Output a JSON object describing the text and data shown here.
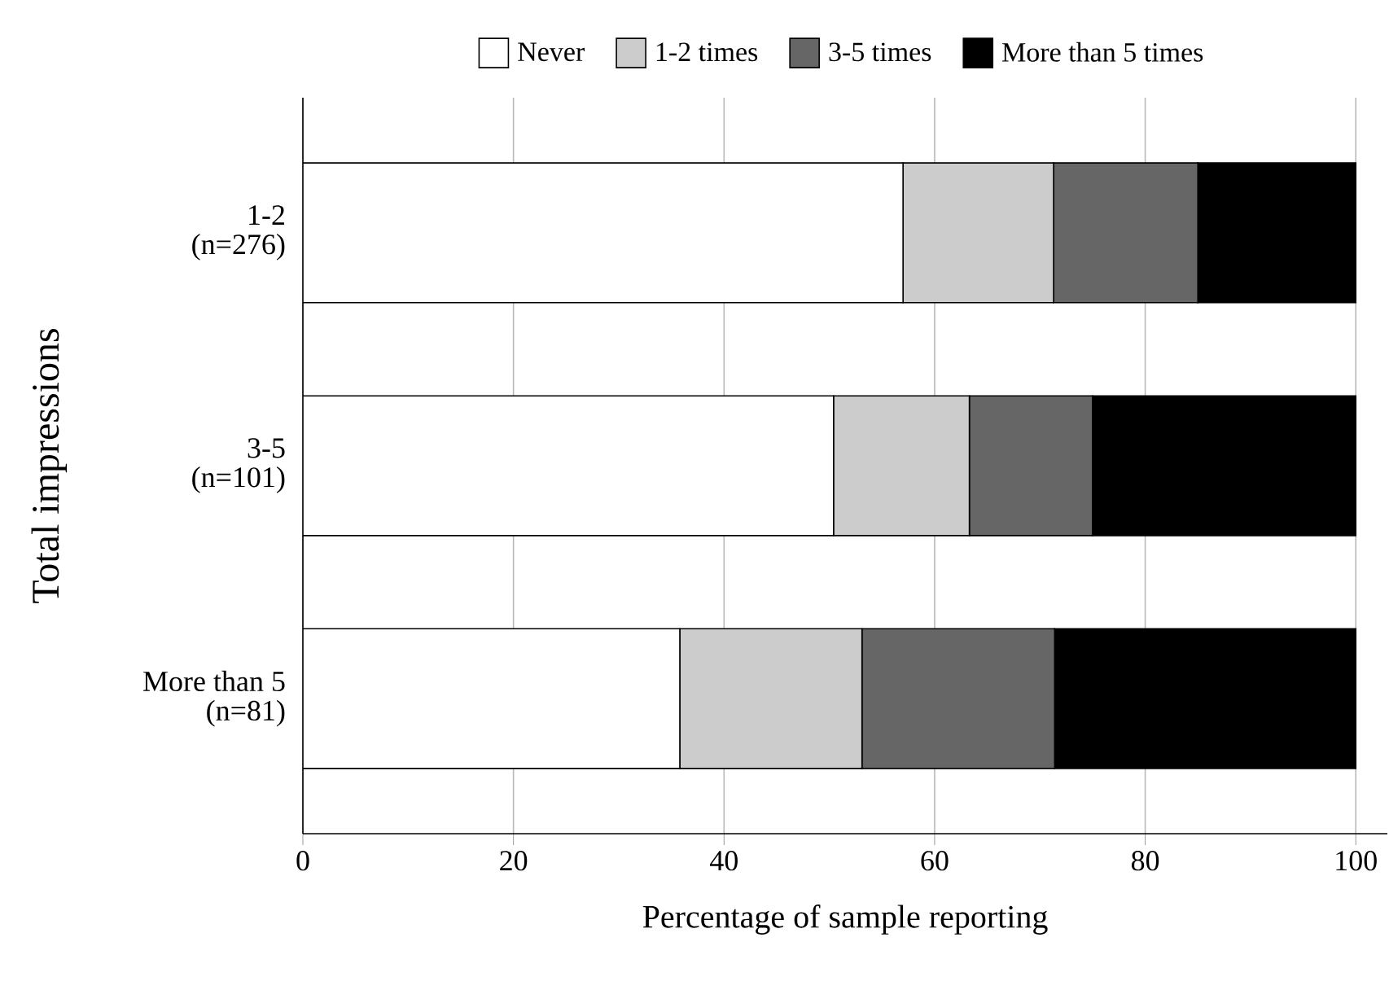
{
  "chart_data": {
    "type": "bar",
    "orientation": "horizontal",
    "stacked": true,
    "xlabel": "Percentage of sample reporting",
    "ylabel": "Total impressions",
    "categories": [
      "1-2 (n=276)",
      "3-5 (n=101)",
      "More than 5 (n=81)"
    ],
    "series": [
      {
        "name": "Never",
        "color": "#ffffff",
        "values": [
          57,
          50.4,
          35.8
        ]
      },
      {
        "name": "1-2 times",
        "color": "#cccccc",
        "values": [
          14.3,
          12.9,
          17.3
        ]
      },
      {
        "name": "3-5 times",
        "color": "#666666",
        "values": [
          13.7,
          11.7,
          18.3
        ]
      },
      {
        "name": "More than 5 times",
        "color": "#000000",
        "values": [
          15,
          25,
          28.6
        ]
      }
    ],
    "xlim": [
      0,
      103
    ],
    "xticks": [
      0,
      20,
      40,
      60,
      80,
      100
    ],
    "grid": "x",
    "legend": "top"
  }
}
